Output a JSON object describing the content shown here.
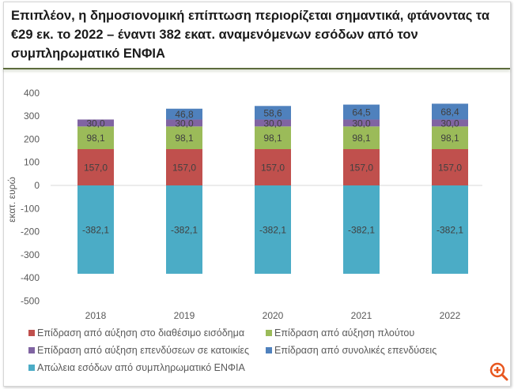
{
  "header": {
    "title": "Επιπλέον, η δημοσιονομική επίπτωση περιορίζεται σημαντικά, φτάνοντας τα €29 εκ. το 2022 – έναντι 382 εκατ. αναμενόμενων εσόδων από τον συμπληρωματικό ΕΝΦΙΑ"
  },
  "zoom_icon": "zoom-in-icon",
  "chart_data": {
    "type": "bar",
    "stacked": true,
    "title": "",
    "xlabel": "",
    "ylabel": "εκατ. ευρώ",
    "ylim": [
      -500,
      400
    ],
    "yticks": [
      400,
      300,
      200,
      100,
      0,
      -100,
      -200,
      -300,
      -400,
      -500
    ],
    "grid": false,
    "legend_position": "bottom",
    "categories": [
      "2018",
      "2019",
      "2020",
      "2021",
      "2022"
    ],
    "series": [
      {
        "name": "Επίδραση από αύξηση στο διαθέσιμο εισόδημα",
        "color": "#c0504d",
        "values": [
          157.0,
          157.0,
          157.0,
          157.0,
          157.0
        ],
        "labels": [
          "157,0",
          "157,0",
          "157,0",
          "157,0",
          "157,0"
        ]
      },
      {
        "name": "Επίδραση από αύξηση πλούτου",
        "color": "#9bbb59",
        "values": [
          98.1,
          98.1,
          98.1,
          98.1,
          98.1
        ],
        "labels": [
          "98,1",
          "98,1",
          "98,1",
          "98,1",
          "98,1"
        ]
      },
      {
        "name": "Επίδραση από αύξηση επενδύσεων σε κατοικίες",
        "color": "#8064a2",
        "values": [
          30.0,
          30.0,
          30.0,
          30.0,
          30.0
        ],
        "labels": [
          "30,0",
          "30,0",
          "30,0",
          "30,0",
          "30,0"
        ]
      },
      {
        "name": "Επίδραση από συνολικές επενδύσεις",
        "color": "#4f81bd",
        "values": [
          0,
          46.8,
          58.6,
          64.5,
          68.4
        ],
        "labels": [
          "",
          "46,8",
          "58,6",
          "64,5",
          "68,4"
        ]
      },
      {
        "name": "Απώλεια εσόδων από συμπληρωματικό ΕΝΦΙΑ",
        "color": "#4bacc6",
        "values": [
          -382.1,
          -382.1,
          -382.1,
          -382.1,
          -382.1
        ],
        "labels": [
          "-382,1",
          "-382,1",
          "-382,1",
          "-382,1",
          "-382,1"
        ]
      }
    ]
  }
}
